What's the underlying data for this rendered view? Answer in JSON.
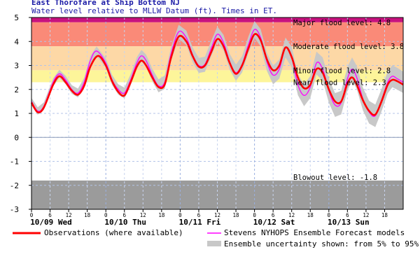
{
  "chart_data": {
    "type": "line",
    "title": "East Thorofare at Ship Bottom NJ",
    "subtitle": "Water level relative to MLLW Datum (ft). Times in ET.",
    "ylim": [
      -3,
      5
    ],
    "yticks": [
      "-3",
      "-2",
      "-1",
      "0",
      "1",
      "2",
      "3",
      "4",
      "5"
    ],
    "x_range_hours": [
      0,
      120
    ],
    "x_hour_ticks": [
      "0",
      "6",
      "12",
      "18",
      "0",
      "6",
      "12",
      "18",
      "0",
      "6",
      "12",
      "18",
      "0",
      "6",
      "12",
      "18",
      "0",
      "6",
      "12",
      "18"
    ],
    "day_labels": [
      "10/09 Wed",
      "10/10 Thu",
      "10/11 Fri",
      "10/12 Sat",
      "10/13 Sun"
    ],
    "flood_bands": [
      {
        "name": "Major flood level",
        "level": 4.8,
        "label": "Major flood level: 4.8",
        "color": "#c8127f",
        "from": 4.8,
        "to": 5.0
      },
      {
        "name": "Moderate flood level",
        "level": 3.8,
        "label": "Moderate flood level: 3.8",
        "color": "#fa8a78",
        "from": 3.8,
        "to": 4.8
      },
      {
        "name": "Minor flood level",
        "level": 2.8,
        "label": "Minor flood level: 2.8",
        "color": "#fdd8a6",
        "from": 2.8,
        "to": 3.8
      },
      {
        "name": "Near flood level",
        "level": 2.3,
        "label": "Near flood level: 2.3",
        "color": "#fdf59a",
        "from": 2.3,
        "to": 2.8
      }
    ],
    "blowout": {
      "level": -1.8,
      "label": "Blowout level: -1.8",
      "color": "#9b9b9b"
    },
    "series": [
      {
        "name": "Observations (where available)",
        "color": "#ff0000",
        "points": [
          [
            0,
            1.45
          ],
          [
            2,
            1.05
          ],
          [
            4,
            1.25
          ],
          [
            7,
            2.2
          ],
          [
            9,
            2.55
          ],
          [
            11,
            2.3
          ],
          [
            13,
            1.95
          ],
          [
            15,
            1.78
          ],
          [
            17,
            2.15
          ],
          [
            19,
            2.95
          ],
          [
            21.5,
            3.4
          ],
          [
            24,
            3.0
          ],
          [
            26,
            2.35
          ],
          [
            28,
            1.9
          ],
          [
            30,
            1.75
          ],
          [
            32,
            2.3
          ],
          [
            34,
            2.95
          ],
          [
            35.5,
            3.2
          ],
          [
            37,
            3.0
          ],
          [
            39,
            2.5
          ],
          [
            41,
            2.1
          ],
          [
            43,
            2.2
          ],
          [
            45,
            3.3
          ],
          [
            47.5,
            4.2
          ],
          [
            50,
            4.0
          ],
          [
            52,
            3.4
          ],
          [
            54,
            2.95
          ],
          [
            56,
            3.0
          ],
          [
            58,
            3.55
          ],
          [
            60,
            4.1
          ],
          [
            62,
            3.8
          ],
          [
            64,
            3.1
          ],
          [
            66,
            2.65
          ],
          [
            68,
            3.0
          ],
          [
            70,
            3.7
          ],
          [
            72,
            4.3
          ],
          [
            74,
            4.05
          ],
          [
            76,
            3.25
          ],
          [
            78,
            2.8
          ],
          [
            80,
            3.0
          ],
          [
            82,
            3.75
          ],
          [
            84,
            3.35
          ],
          [
            86,
            2.5
          ],
          [
            88,
            2.05
          ],
          [
            90,
            2.2
          ],
          [
            92,
            2.85
          ],
          [
            94,
            2.7
          ],
          [
            96,
            2.0
          ],
          [
            98,
            1.5
          ],
          [
            100,
            1.5
          ],
          [
            102,
            2.25
          ],
          [
            103.5,
            2.5
          ],
          [
            105,
            2.2
          ],
          [
            107,
            1.55
          ],
          [
            109,
            1.1
          ],
          [
            111,
            0.95
          ],
          [
            113,
            1.5
          ],
          [
            115,
            2.2
          ],
          [
            116.5,
            2.4
          ],
          [
            118,
            2.35
          ],
          [
            120,
            2.2
          ]
        ]
      },
      {
        "name": "Stevens NYHOPS Ensemble Forecast models",
        "color": "#ff00ff",
        "points": [
          [
            0,
            1.5
          ],
          [
            2,
            1.1
          ],
          [
            4,
            1.3
          ],
          [
            7,
            2.3
          ],
          [
            9,
            2.65
          ],
          [
            11,
            2.4
          ],
          [
            13,
            2.0
          ],
          [
            15,
            1.85
          ],
          [
            17,
            2.3
          ],
          [
            19,
            3.2
          ],
          [
            21,
            3.6
          ],
          [
            24,
            3.1
          ],
          [
            26,
            2.4
          ],
          [
            28,
            2.0
          ],
          [
            30,
            1.85
          ],
          [
            32,
            2.4
          ],
          [
            34,
            3.1
          ],
          [
            35.5,
            3.4
          ],
          [
            37,
            3.2
          ],
          [
            39,
            2.6
          ],
          [
            41,
            2.15
          ],
          [
            43,
            2.3
          ],
          [
            45,
            3.45
          ],
          [
            47.5,
            4.4
          ],
          [
            50,
            4.15
          ],
          [
            52,
            3.45
          ],
          [
            54,
            3.0
          ],
          [
            56,
            3.05
          ],
          [
            58,
            3.7
          ],
          [
            60,
            4.3
          ],
          [
            62,
            3.95
          ],
          [
            64,
            3.15
          ],
          [
            66,
            2.7
          ],
          [
            68,
            3.05
          ],
          [
            70,
            3.85
          ],
          [
            72,
            4.5
          ],
          [
            74,
            4.15
          ],
          [
            76,
            3.15
          ],
          [
            78,
            2.6
          ],
          [
            80,
            2.85
          ],
          [
            82,
            3.75
          ],
          [
            84,
            3.35
          ],
          [
            86,
            2.2
          ],
          [
            88,
            1.75
          ],
          [
            90,
            2.1
          ],
          [
            92,
            3.1
          ],
          [
            94,
            2.85
          ],
          [
            96,
            1.95
          ],
          [
            98,
            1.35
          ],
          [
            100,
            1.45
          ],
          [
            102,
            2.45
          ],
          [
            103.5,
            2.85
          ],
          [
            105,
            2.5
          ],
          [
            107,
            1.6
          ],
          [
            109,
            1.05
          ],
          [
            111,
            0.9
          ],
          [
            113,
            1.55
          ],
          [
            115,
            2.3
          ],
          [
            116.5,
            2.55
          ],
          [
            118,
            2.45
          ],
          [
            120,
            2.3
          ]
        ]
      },
      {
        "name": "Ensemble uncertainty shown: from 5% to 95%.",
        "color": "#c8c8c8",
        "band_halfwidth": [
          [
            0,
            0.15
          ],
          [
            24,
            0.2
          ],
          [
            48,
            0.3
          ],
          [
            72,
            0.35
          ],
          [
            96,
            0.5
          ],
          [
            120,
            0.45
          ]
        ]
      }
    ],
    "grid": true,
    "legend_position": "bottom"
  }
}
